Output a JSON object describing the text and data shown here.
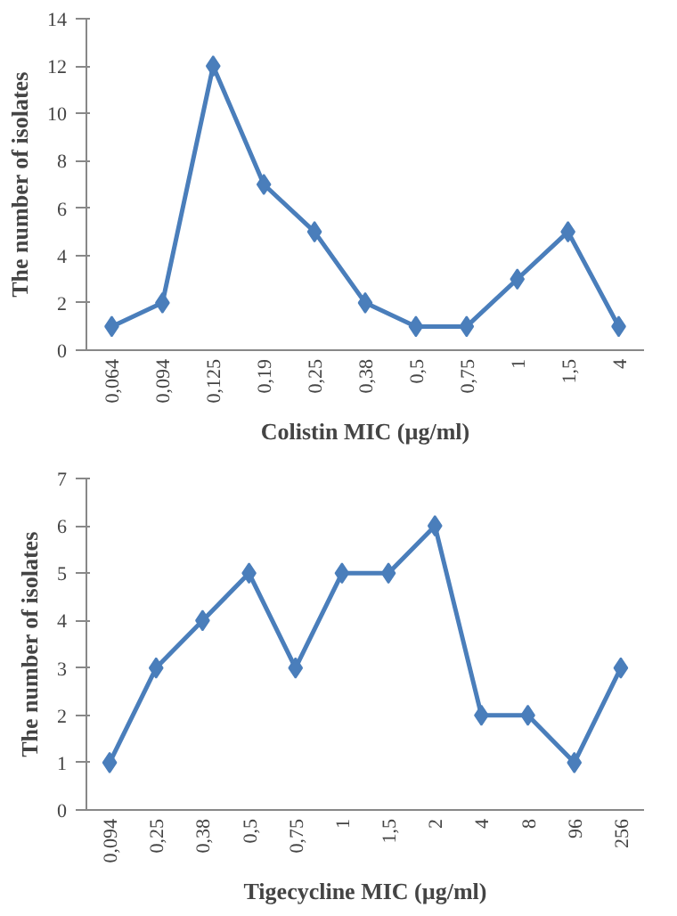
{
  "chart_data": [
    {
      "type": "line",
      "xlabel": "Colistin MIC (µg/ml)",
      "ylabel": "The number of isolates",
      "categories": [
        "0,064",
        "0,094",
        "0,125",
        "0,19",
        "0,25",
        "0,38",
        "0,5",
        "0,75",
        "1",
        "1,5",
        "4"
      ],
      "series": [
        {
          "color": "#4a7ebb",
          "values": [
            1,
            2,
            12,
            7,
            5,
            2,
            1,
            1,
            3,
            5,
            1
          ]
        }
      ],
      "ylim": [
        0,
        14
      ],
      "yticks": [
        0,
        2,
        4,
        6,
        8,
        10,
        12,
        14
      ],
      "grid": false,
      "marker": "diamond",
      "line_style": "solid"
    },
    {
      "type": "line",
      "xlabel": "Tigecycline MIC (µg/ml)",
      "ylabel": "The number of isolates",
      "categories": [
        "0,094",
        "0,25",
        "0,38",
        "0,5",
        "0,75",
        "1",
        "1,5",
        "2",
        "4",
        "8",
        "96",
        "256"
      ],
      "series": [
        {
          "color": "#4a7ebb",
          "values": [
            1,
            3,
            4,
            5,
            3,
            5,
            5,
            6,
            2,
            2,
            1,
            3
          ]
        }
      ],
      "ylim": [
        0,
        7
      ],
      "yticks": [
        0,
        1,
        2,
        3,
        4,
        5,
        6,
        7
      ],
      "grid": false,
      "marker": "diamond",
      "line_style": "solid"
    }
  ]
}
